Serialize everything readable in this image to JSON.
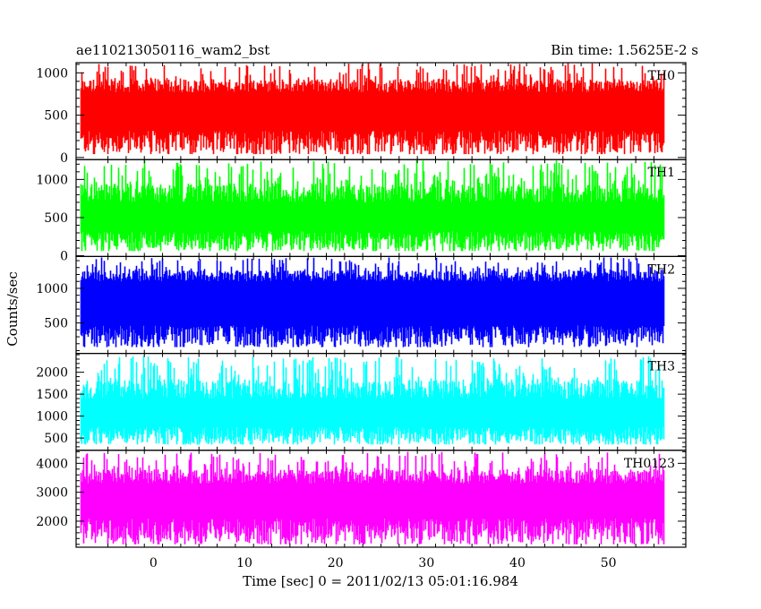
{
  "chart_data": {
    "type": "line",
    "title_left": "ae110213050116_wam2_bst",
    "title_right": "Bin time: 1.5625E-2 s",
    "xlabel": "Time [sec] 0 = 2011/02/13 05:01:16.984",
    "ylabel": "Counts/sec",
    "xlim": [
      -8.5,
      58.5
    ],
    "x_ticks": [
      0,
      10,
      20,
      30,
      40,
      50
    ],
    "data_x_range": [
      -8,
      56
    ],
    "panels": [
      {
        "name": "TH0",
        "color": "#ff0000",
        "ylim": [
          -25,
          1120
        ],
        "y_ticks": [
          0,
          500,
          1000
        ],
        "band": {
          "base": 40,
          "low": 350,
          "high": 770,
          "peak": 1120
        }
      },
      {
        "name": "TH1",
        "color": "#00ff00",
        "ylim": [
          -10,
          1260
        ],
        "y_ticks": [
          0,
          500,
          1000
        ],
        "band": {
          "base": 60,
          "low": 350,
          "high": 700,
          "peak": 1250
        }
      },
      {
        "name": "TH2",
        "color": "#0000ff",
        "ylim": [
          60,
          1460
        ],
        "y_ticks": [
          500,
          1000
        ],
        "band": {
          "base": 150,
          "low": 500,
          "high": 1100,
          "peak": 1450
        }
      },
      {
        "name": "TH3",
        "color": "#00ffff",
        "ylim": [
          220,
          2430
        ],
        "y_ticks": [
          500,
          1000,
          1500,
          2000
        ],
        "band": {
          "base": 350,
          "low": 800,
          "high": 1400,
          "peak": 2380
        }
      },
      {
        "name": "TH0123",
        "color": "#ff00ff",
        "ylim": [
          1100,
          4450
        ],
        "y_ticks": [
          2000,
          3000,
          4000
        ],
        "band": {
          "base": 1200,
          "low": 2200,
          "high": 3300,
          "peak": 4400
        }
      }
    ]
  }
}
